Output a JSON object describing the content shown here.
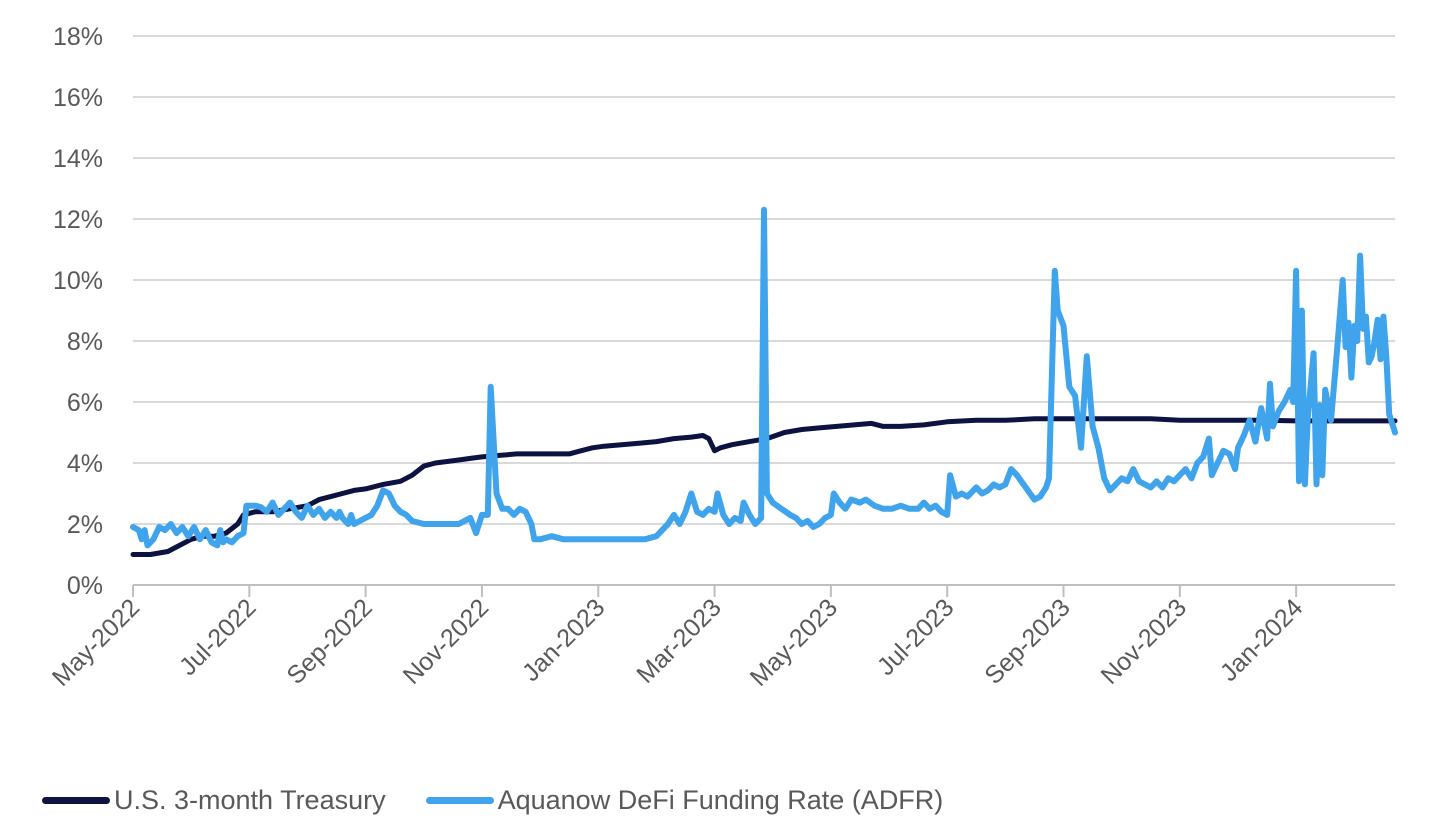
{
  "chart_data": {
    "type": "line",
    "title": "",
    "xlabel": "",
    "ylabel": "",
    "ylim": [
      0,
      18
    ],
    "xlim": [
      0,
      21.7
    ],
    "y_ticks": [
      {
        "value": 0,
        "label": "0%"
      },
      {
        "value": 2,
        "label": "2%"
      },
      {
        "value": 4,
        "label": "4%"
      },
      {
        "value": 6,
        "label": "6%"
      },
      {
        "value": 8,
        "label": "8%"
      },
      {
        "value": 10,
        "label": "10%"
      },
      {
        "value": 12,
        "label": "12%"
      },
      {
        "value": 14,
        "label": "14%"
      },
      {
        "value": 16,
        "label": "16%"
      },
      {
        "value": 18,
        "label": "18%"
      }
    ],
    "x_ticks": [
      {
        "value": 0,
        "label": "May-2022"
      },
      {
        "value": 2,
        "label": "Jul-2022"
      },
      {
        "value": 4,
        "label": "Sep-2022"
      },
      {
        "value": 6,
        "label": "Nov-2022"
      },
      {
        "value": 8,
        "label": "Jan-2023"
      },
      {
        "value": 10,
        "label": "Mar-2023"
      },
      {
        "value": 12,
        "label": "May-2023"
      },
      {
        "value": 14,
        "label": "Jul-2023"
      },
      {
        "value": 16,
        "label": "Sep-2023"
      },
      {
        "value": 18,
        "label": "Nov-2023"
      },
      {
        "value": 20,
        "label": "Jan-2024"
      }
    ],
    "legend_position": "bottom-left",
    "series": [
      {
        "name": "U.S. 3-month Treasury",
        "color": "#0d1240",
        "points": [
          [
            0,
            1.0
          ],
          [
            0.3,
            1.0
          ],
          [
            0.6,
            1.1
          ],
          [
            0.8,
            1.3
          ],
          [
            1.0,
            1.5
          ],
          [
            1.2,
            1.6
          ],
          [
            1.4,
            1.6
          ],
          [
            1.6,
            1.7
          ],
          [
            1.8,
            2.0
          ],
          [
            1.9,
            2.3
          ],
          [
            2.1,
            2.4
          ],
          [
            2.4,
            2.4
          ],
          [
            2.7,
            2.5
          ],
          [
            3.0,
            2.6
          ],
          [
            3.2,
            2.8
          ],
          [
            3.4,
            2.9
          ],
          [
            3.6,
            3.0
          ],
          [
            3.8,
            3.1
          ],
          [
            4.0,
            3.15
          ],
          [
            4.3,
            3.3
          ],
          [
            4.6,
            3.4
          ],
          [
            4.8,
            3.6
          ],
          [
            5.0,
            3.9
          ],
          [
            5.2,
            4.0
          ],
          [
            5.4,
            4.05
          ],
          [
            5.6,
            4.1
          ],
          [
            5.8,
            4.15
          ],
          [
            6.0,
            4.2
          ],
          [
            6.3,
            4.25
          ],
          [
            6.6,
            4.3
          ],
          [
            6.9,
            4.3
          ],
          [
            7.2,
            4.3
          ],
          [
            7.5,
            4.3
          ],
          [
            7.7,
            4.4
          ],
          [
            7.9,
            4.5
          ],
          [
            8.1,
            4.55
          ],
          [
            8.4,
            4.6
          ],
          [
            8.7,
            4.65
          ],
          [
            9.0,
            4.7
          ],
          [
            9.3,
            4.8
          ],
          [
            9.6,
            4.85
          ],
          [
            9.8,
            4.9
          ],
          [
            9.9,
            4.8
          ],
          [
            10.0,
            4.4
          ],
          [
            10.1,
            4.5
          ],
          [
            10.3,
            4.6
          ],
          [
            10.6,
            4.7
          ],
          [
            10.9,
            4.8
          ],
          [
            11.2,
            5.0
          ],
          [
            11.5,
            5.1
          ],
          [
            11.8,
            5.15
          ],
          [
            12.1,
            5.2
          ],
          [
            12.4,
            5.25
          ],
          [
            12.7,
            5.3
          ],
          [
            12.9,
            5.2
          ],
          [
            13.2,
            5.2
          ],
          [
            13.6,
            5.25
          ],
          [
            14.0,
            5.35
          ],
          [
            14.5,
            5.4
          ],
          [
            15.0,
            5.4
          ],
          [
            15.5,
            5.45
          ],
          [
            16.0,
            5.45
          ],
          [
            16.5,
            5.45
          ],
          [
            17.0,
            5.45
          ],
          [
            17.5,
            5.45
          ],
          [
            18.0,
            5.4
          ],
          [
            18.5,
            5.4
          ],
          [
            19.0,
            5.4
          ],
          [
            19.5,
            5.4
          ],
          [
            20.0,
            5.38
          ],
          [
            20.5,
            5.38
          ],
          [
            21.0,
            5.38
          ],
          [
            21.7,
            5.38
          ]
        ]
      },
      {
        "name": "Aquanow DeFi Funding Rate (ADFR)",
        "color": "#3fa4ec",
        "points": [
          [
            0,
            1.9
          ],
          [
            0.1,
            1.8
          ],
          [
            0.15,
            1.5
          ],
          [
            0.2,
            1.8
          ],
          [
            0.25,
            1.3
          ],
          [
            0.35,
            1.5
          ],
          [
            0.45,
            1.9
          ],
          [
            0.55,
            1.8
          ],
          [
            0.65,
            2.0
          ],
          [
            0.75,
            1.7
          ],
          [
            0.85,
            1.9
          ],
          [
            0.95,
            1.6
          ],
          [
            1.05,
            1.9
          ],
          [
            1.15,
            1.5
          ],
          [
            1.25,
            1.8
          ],
          [
            1.35,
            1.4
          ],
          [
            1.45,
            1.3
          ],
          [
            1.5,
            1.8
          ],
          [
            1.55,
            1.4
          ],
          [
            1.6,
            1.5
          ],
          [
            1.7,
            1.4
          ],
          [
            1.8,
            1.6
          ],
          [
            1.9,
            1.7
          ],
          [
            1.95,
            2.6
          ],
          [
            2.1,
            2.6
          ],
          [
            2.2,
            2.55
          ],
          [
            2.3,
            2.4
          ],
          [
            2.4,
            2.7
          ],
          [
            2.5,
            2.3
          ],
          [
            2.6,
            2.5
          ],
          [
            2.7,
            2.7
          ],
          [
            2.8,
            2.4
          ],
          [
            2.9,
            2.2
          ],
          [
            3.0,
            2.6
          ],
          [
            3.1,
            2.3
          ],
          [
            3.2,
            2.5
          ],
          [
            3.3,
            2.2
          ],
          [
            3.4,
            2.4
          ],
          [
            3.5,
            2.2
          ],
          [
            3.55,
            2.4
          ],
          [
            3.6,
            2.2
          ],
          [
            3.7,
            2.0
          ],
          [
            3.75,
            2.3
          ],
          [
            3.8,
            2.0
          ],
          [
            3.9,
            2.1
          ],
          [
            4.0,
            2.2
          ],
          [
            4.1,
            2.3
          ],
          [
            4.2,
            2.6
          ],
          [
            4.3,
            3.1
          ],
          [
            4.4,
            3.0
          ],
          [
            4.5,
            2.6
          ],
          [
            4.6,
            2.4
          ],
          [
            4.7,
            2.3
          ],
          [
            4.8,
            2.1
          ],
          [
            5.0,
            2.0
          ],
          [
            5.2,
            2.0
          ],
          [
            5.4,
            2.0
          ],
          [
            5.6,
            2.0
          ],
          [
            5.8,
            2.2
          ],
          [
            5.9,
            1.7
          ],
          [
            6.0,
            2.3
          ],
          [
            6.1,
            2.3
          ],
          [
            6.15,
            6.5
          ],
          [
            6.25,
            3.0
          ],
          [
            6.35,
            2.5
          ],
          [
            6.45,
            2.5
          ],
          [
            6.55,
            2.3
          ],
          [
            6.65,
            2.5
          ],
          [
            6.75,
            2.4
          ],
          [
            6.85,
            2.0
          ],
          [
            6.9,
            1.5
          ],
          [
            7.0,
            1.5
          ],
          [
            7.2,
            1.6
          ],
          [
            7.4,
            1.5
          ],
          [
            7.6,
            1.5
          ],
          [
            7.8,
            1.5
          ],
          [
            8.0,
            1.5
          ],
          [
            8.1,
            1.5
          ],
          [
            8.2,
            1.5
          ],
          [
            8.4,
            1.5
          ],
          [
            8.6,
            1.5
          ],
          [
            8.8,
            1.5
          ],
          [
            9.0,
            1.6
          ],
          [
            9.2,
            2.0
          ],
          [
            9.3,
            2.3
          ],
          [
            9.4,
            2.0
          ],
          [
            9.5,
            2.4
          ],
          [
            9.6,
            3.0
          ],
          [
            9.7,
            2.4
          ],
          [
            9.8,
            2.3
          ],
          [
            9.9,
            2.5
          ],
          [
            10.0,
            2.4
          ],
          [
            10.05,
            3.0
          ],
          [
            10.15,
            2.3
          ],
          [
            10.25,
            2.0
          ],
          [
            10.35,
            2.2
          ],
          [
            10.45,
            2.1
          ],
          [
            10.5,
            2.7
          ],
          [
            10.6,
            2.3
          ],
          [
            10.7,
            2.0
          ],
          [
            10.8,
            2.2
          ],
          [
            10.85,
            12.3
          ],
          [
            10.9,
            3.0
          ],
          [
            11.0,
            2.7
          ],
          [
            11.15,
            2.5
          ],
          [
            11.3,
            2.3
          ],
          [
            11.4,
            2.2
          ],
          [
            11.5,
            2.0
          ],
          [
            11.6,
            2.1
          ],
          [
            11.7,
            1.9
          ],
          [
            11.8,
            2.0
          ],
          [
            11.9,
            2.2
          ],
          [
            12.0,
            2.3
          ],
          [
            12.05,
            3.0
          ],
          [
            12.15,
            2.7
          ],
          [
            12.25,
            2.5
          ],
          [
            12.35,
            2.8
          ],
          [
            12.5,
            2.7
          ],
          [
            12.6,
            2.8
          ],
          [
            12.75,
            2.6
          ],
          [
            12.9,
            2.5
          ],
          [
            13.05,
            2.5
          ],
          [
            13.2,
            2.6
          ],
          [
            13.35,
            2.5
          ],
          [
            13.5,
            2.5
          ],
          [
            13.6,
            2.7
          ],
          [
            13.7,
            2.5
          ],
          [
            13.8,
            2.6
          ],
          [
            13.9,
            2.4
          ],
          [
            14.0,
            2.3
          ],
          [
            14.05,
            3.6
          ],
          [
            14.15,
            2.9
          ],
          [
            14.25,
            3.0
          ],
          [
            14.35,
            2.9
          ],
          [
            14.5,
            3.2
          ],
          [
            14.6,
            3.0
          ],
          [
            14.7,
            3.1
          ],
          [
            14.8,
            3.3
          ],
          [
            14.9,
            3.2
          ],
          [
            15.0,
            3.3
          ],
          [
            15.1,
            3.8
          ],
          [
            15.2,
            3.6
          ],
          [
            15.35,
            3.2
          ],
          [
            15.5,
            2.8
          ],
          [
            15.6,
            2.9
          ],
          [
            15.7,
            3.2
          ],
          [
            15.75,
            3.5
          ],
          [
            15.85,
            10.3
          ],
          [
            15.9,
            9.0
          ],
          [
            16.0,
            8.5
          ],
          [
            16.1,
            6.5
          ],
          [
            16.2,
            6.2
          ],
          [
            16.3,
            4.5
          ],
          [
            16.4,
            7.5
          ],
          [
            16.5,
            5.2
          ],
          [
            16.6,
            4.5
          ],
          [
            16.7,
            3.5
          ],
          [
            16.8,
            3.1
          ],
          [
            16.9,
            3.3
          ],
          [
            17.0,
            3.5
          ],
          [
            17.1,
            3.4
          ],
          [
            17.2,
            3.8
          ],
          [
            17.3,
            3.4
          ],
          [
            17.4,
            3.3
          ],
          [
            17.5,
            3.2
          ],
          [
            17.6,
            3.4
          ],
          [
            17.7,
            3.2
          ],
          [
            17.8,
            3.5
          ],
          [
            17.9,
            3.4
          ],
          [
            18.0,
            3.6
          ],
          [
            18.1,
            3.8
          ],
          [
            18.2,
            3.5
          ],
          [
            18.3,
            4.0
          ],
          [
            18.4,
            4.2
          ],
          [
            18.5,
            4.8
          ],
          [
            18.55,
            3.6
          ],
          [
            18.65,
            4.0
          ],
          [
            18.75,
            4.4
          ],
          [
            18.85,
            4.3
          ],
          [
            18.95,
            3.8
          ],
          [
            19.0,
            4.5
          ],
          [
            19.1,
            4.9
          ],
          [
            19.2,
            5.4
          ],
          [
            19.3,
            4.7
          ],
          [
            19.4,
            5.8
          ],
          [
            19.5,
            4.8
          ],
          [
            19.55,
            6.6
          ],
          [
            19.6,
            5.2
          ],
          [
            19.7,
            5.7
          ],
          [
            19.8,
            6.0
          ],
          [
            19.9,
            6.4
          ],
          [
            19.95,
            6.0
          ],
          [
            20.0,
            10.3
          ],
          [
            20.05,
            3.4
          ],
          [
            20.1,
            9.0
          ],
          [
            20.15,
            3.3
          ],
          [
            20.2,
            5.5
          ],
          [
            20.3,
            7.6
          ],
          [
            20.35,
            3.3
          ],
          [
            20.4,
            5.9
          ],
          [
            20.45,
            3.6
          ],
          [
            20.5,
            6.4
          ],
          [
            20.6,
            5.4
          ],
          [
            20.7,
            7.6
          ],
          [
            20.8,
            10.0
          ],
          [
            20.85,
            7.8
          ],
          [
            20.9,
            8.6
          ],
          [
            20.95,
            6.8
          ],
          [
            21.0,
            8.5
          ],
          [
            21.05,
            8.0
          ],
          [
            21.1,
            10.8
          ],
          [
            21.15,
            8.4
          ],
          [
            21.2,
            8.8
          ],
          [
            21.25,
            7.3
          ],
          [
            21.3,
            7.5
          ],
          [
            21.35,
            8.0
          ],
          [
            21.4,
            8.7
          ],
          [
            21.45,
            7.4
          ],
          [
            21.5,
            8.8
          ],
          [
            21.55,
            7.5
          ],
          [
            21.6,
            5.6
          ],
          [
            21.7,
            5.0
          ]
        ]
      }
    ]
  }
}
